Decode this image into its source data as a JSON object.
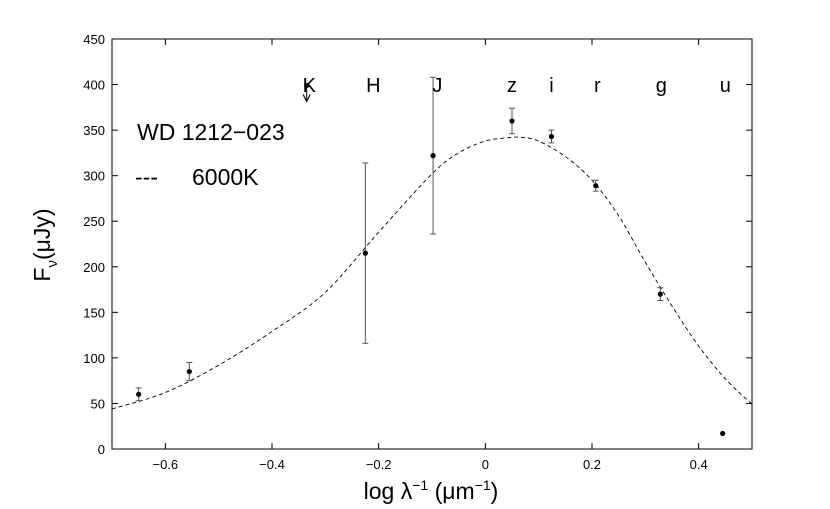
{
  "chart_data": {
    "type": "scatter",
    "xlabel": "log λ⁻¹ (μm⁻¹)",
    "ylabel": "Fν(μJy)",
    "xlim": [
      -0.7,
      0.5
    ],
    "ylim": [
      0,
      450
    ],
    "xticks": [
      -0.6,
      -0.4,
      -0.2,
      0,
      0.2,
      0.4
    ],
    "xtick_labels": [
      "−0.6",
      "−0.4",
      "−0.2",
      "0",
      "0.2",
      "0.4"
    ],
    "yticks": [
      0,
      50,
      100,
      150,
      200,
      250,
      300,
      350,
      400,
      450
    ],
    "ytick_labels": [
      "0",
      "50",
      "100",
      "150",
      "200",
      "250",
      "300",
      "350",
      "400",
      "450"
    ],
    "grid": false,
    "legend": {
      "object": "WD 1212−023",
      "model_line_symbol": "---",
      "model_label": "6000K"
    },
    "band_labels": [
      {
        "label": "K",
        "x": -0.33
      },
      {
        "label": "H",
        "x": -0.21
      },
      {
        "label": "J",
        "x": -0.09
      },
      {
        "label": "z",
        "x": 0.05
      },
      {
        "label": "i",
        "x": 0.124
      },
      {
        "label": "r",
        "x": 0.21
      },
      {
        "label": "g",
        "x": 0.33
      },
      {
        "label": "u",
        "x": 0.45
      }
    ],
    "points": [
      {
        "x": -0.65,
        "y": 60,
        "err": 7
      },
      {
        "x": -0.555,
        "y": 85,
        "err": 10
      },
      {
        "x": -0.225,
        "y": 215,
        "err": 99
      },
      {
        "x": -0.098,
        "y": 322,
        "err": 86
      },
      {
        "x": 0.05,
        "y": 360,
        "err": 14
      },
      {
        "x": 0.124,
        "y": 343,
        "err": 7
      },
      {
        "x": 0.207,
        "y": 289,
        "err": 6
      },
      {
        "x": 0.328,
        "y": 170,
        "err": 7
      },
      {
        "x": 0.445,
        "y": 17,
        "err": 0
      }
    ],
    "upper_limits": [
      {
        "x": -0.335,
        "y": 399
      }
    ],
    "model_curve": {
      "name": "6000K",
      "style": "dashed",
      "x": [
        -0.7,
        -0.6,
        -0.5,
        -0.4,
        -0.3,
        -0.2,
        -0.1,
        -0.05,
        0,
        0.05,
        0.07,
        0.1,
        0.15,
        0.2,
        0.25,
        0.3,
        0.35,
        0.4,
        0.45,
        0.5
      ],
      "y": [
        44,
        62,
        92,
        129,
        172,
        238,
        302,
        325,
        338,
        342,
        342,
        338,
        321,
        295,
        256,
        205,
        157,
        113,
        77,
        49
      ]
    }
  }
}
